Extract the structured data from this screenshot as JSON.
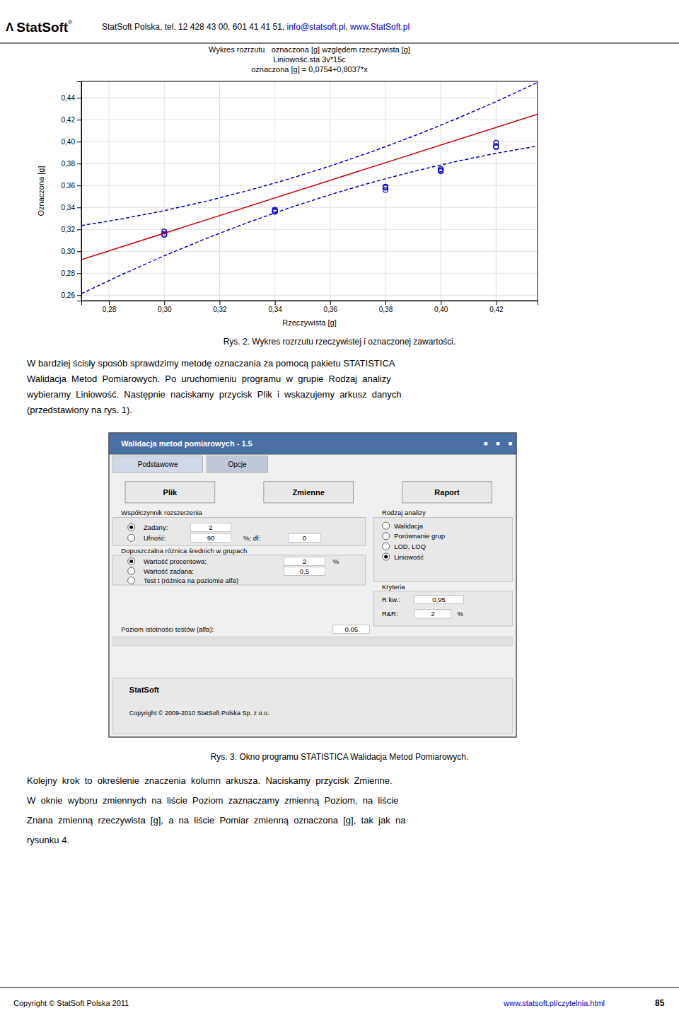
{
  "chart_data": {
    "type": "scatter",
    "title": [
      "Wykres rozrzutu   oznaczona [g] względem rzeczywista [g]",
      "Liniowość.sta 3v*15c",
      "oznaczona [g] = 0,0754+0,8037*x"
    ],
    "xlabel": "Rzeczywista [g]",
    "ylabel": "Oznaczona [g]",
    "xlim": [
      0.27,
      0.435
    ],
    "ylim": [
      0.255,
      0.455
    ],
    "xticks": [
      {
        "value": 0.28,
        "label": "0,28"
      },
      {
        "value": 0.3,
        "label": "0,30"
      },
      {
        "value": 0.32,
        "label": "0,32"
      },
      {
        "value": 0.34,
        "label": "0,34"
      },
      {
        "value": 0.36,
        "label": "0,36"
      },
      {
        "value": 0.38,
        "label": "0,38"
      },
      {
        "value": 0.4,
        "label": "0,40"
      },
      {
        "value": 0.42,
        "label": "0,42"
      }
    ],
    "yticks": [
      {
        "value": 0.26,
        "label": "0,26"
      },
      {
        "value": 0.28,
        "label": "0,28"
      },
      {
        "value": 0.3,
        "label": "0,30"
      },
      {
        "value": 0.32,
        "label": "0,32"
      },
      {
        "value": 0.34,
        "label": "0,34"
      },
      {
        "value": 0.36,
        "label": "0,36"
      },
      {
        "value": 0.38,
        "label": "0,38"
      },
      {
        "value": 0.4,
        "label": "0,40"
      },
      {
        "value": 0.42,
        "label": "0,42"
      },
      {
        "value": 0.44,
        "label": "0,44"
      }
    ],
    "grid": true,
    "series": [
      {
        "type": "scatter",
        "color": "#0000cc",
        "marker": "open-circle",
        "x": [
          0.3,
          0.3,
          0.3,
          0.34,
          0.34,
          0.34,
          0.38,
          0.38,
          0.38,
          0.4,
          0.4,
          0.4,
          0.42,
          0.42,
          0.42
        ],
        "values": [
          0.316,
          0.318,
          0.315,
          0.337,
          0.336,
          0.338,
          0.359,
          0.358,
          0.356,
          0.375,
          0.374,
          0.373,
          0.396,
          0.399,
          0.395
        ]
      },
      {
        "type": "line",
        "color": "#cc0000",
        "line_style": "solid",
        "x": [
          0.27,
          0.435
        ],
        "values": [
          0.292399,
          0.4250095
        ]
      },
      {
        "type": "line",
        "color": "#0000cc",
        "line_style": "dashed",
        "x": [
          0.27,
          0.285,
          0.3,
          0.315,
          0.33,
          0.345,
          0.36,
          0.375,
          0.39,
          0.405,
          0.42,
          0.435
        ],
        "values": [
          0.3234615,
          0.3297045,
          0.3370725,
          0.3455655,
          0.3551835,
          0.3659265,
          0.3777945,
          0.3907875,
          0.4049055,
          0.4201485,
          0.4365165,
          0.4540095
        ]
      },
      {
        "type": "line",
        "color": "#0000cc",
        "line_style": "dashed",
        "x": [
          0.27,
          0.285,
          0.3,
          0.315,
          0.33,
          0.345,
          0.36,
          0.375,
          0.39,
          0.405,
          0.42,
          0.435
        ],
        "values": [
          0.2613365,
          0.2792045,
          0.2959475,
          0.3115655,
          0.3260585,
          0.3394265,
          0.3516695,
          0.3627875,
          0.3727805,
          0.3816485,
          0.3893915,
          0.3960095
        ]
      }
    ]
  },
  "page": {
    "header": {
      "logo_symbol": "Λ",
      "logo": "StatSoft",
      "registered": "®",
      "info": "StatSoft Polska, tel. 12 428 43 00, 601 41 41 51, ",
      "email": "info@statsoft.pl",
      "separator": ", ",
      "website": "www.StatSoft.pl"
    },
    "caption1": "Rys. 2. Wykres rozrzutu rzeczywistej i oznaczonej zawartości.",
    "para1_lines": [
      "W bardziej ścisły sposób sprawdzimy metodę oznaczania za pomocą pakietu STATISTICA",
      "Walidacja  Metod  Pomiarowych.  Po  uruchomieniu  programu  w  grupie  Rodzaj  analizy",
      "wybieramy  Liniowość.  Następnie  naciskamy  przycisk  Plik  i  wskazujemy  arkusz  danych",
      "(przedstawiony na rys. 1)."
    ],
    "dialog": {
      "title": "Walidacja metod pomiarowych - 1.5",
      "window_buttons": [
        "■",
        "■",
        "■"
      ],
      "tabs": [
        "Podstawowe",
        "Opcje"
      ],
      "buttons": [
        "Plik",
        "Zmienne",
        "Raport"
      ],
      "expansion": {
        "label": "Współczynnik rozszerzenia",
        "given": {
          "label": "Zadany:",
          "value": "2",
          "selected": true
        },
        "confidence": {
          "label": "Ufność:",
          "value": "90",
          "selected": false,
          "df_label": "%; df:",
          "df_value": "0"
        }
      },
      "difference": {
        "label": "Dopuszczalna różnica średnich w grupach",
        "percent": {
          "label": "Wartość procentowa:",
          "value": "2",
          "unit": "%",
          "selected": true
        },
        "given": {
          "label": "Wartość zadana:",
          "value": "0,5",
          "selected": false
        },
        "t_test": {
          "label": "Test t (różnica na poziomie alfa)",
          "selected": false
        }
      },
      "analysis": {
        "label": "Rodzaj analizy",
        "options": [
          {
            "label": "Walidacja",
            "selected": false
          },
          {
            "label": "Porównanie grup",
            "selected": false
          },
          {
            "label": "LOD, LOQ",
            "selected": false
          },
          {
            "label": "Liniowość",
            "selected": true
          }
        ]
      },
      "criteria": {
        "label": "Kryteria",
        "r2_label": "R kw.:",
        "r2_value": "0,95",
        "rr_label": "R&R:",
        "rr_value": "2",
        "rr_unit": "%"
      },
      "alpha": {
        "label": "Poziom istotności testów (alfa):",
        "value": "0,05"
      },
      "brand": "StatSoft",
      "copyright": "Copyright © 2009-2010 StatSoft Polska Sp. z o.o."
    },
    "caption2": "Rys. 3. Okno programu STATISTICA Walidacja Metod Pomiarowych.",
    "para2_lines": [
      "Kolejny  krok  to  określenie  znaczenia  kolumn  arkusza.  Naciskamy  przycisk  Zmienne.",
      "W  oknie  wyboru  zmiennych  na  liście  Poziom  zaznaczamy  zmienną  Poziom,  na  liście",
      "Znana  zmienną  rzeczywista  [g],  a  na  liście  Pomiar  zmienną  oznaczona  [g],  tak  jak  na",
      "rysunku 4."
    ],
    "footer": {
      "left": "Copyright © StatSoft Polska 2011",
      "right": "www.statsoft.pl/czytelnia.html",
      "number": "85"
    }
  }
}
